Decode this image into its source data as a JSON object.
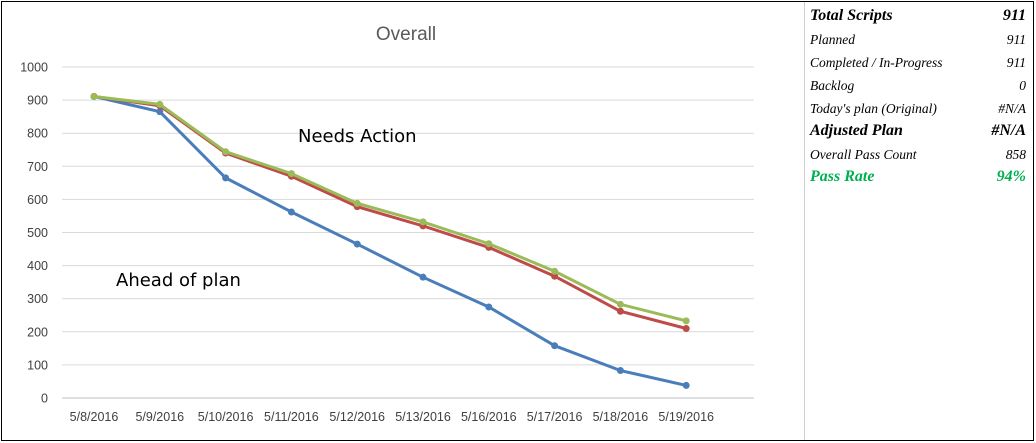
{
  "chart_data": {
    "type": "line",
    "title": "Overall",
    "categories": [
      "5/8/2016",
      "5/9/2016",
      "5/10/2016",
      "5/11/2016",
      "5/12/2016",
      "5/13/2016",
      "5/16/2016",
      "5/17/2016",
      "5/18/2016",
      "5/19/2016"
    ],
    "series": [
      {
        "color": "#4a7ebb",
        "values": [
          911,
          865,
          665,
          562,
          465,
          365,
          275,
          158,
          83,
          38
        ]
      },
      {
        "color": "#be4b48",
        "values": [
          911,
          883,
          740,
          670,
          578,
          520,
          455,
          368,
          262,
          210
        ]
      },
      {
        "color": "#9bbb59",
        "values": [
          911,
          887,
          744,
          678,
          588,
          532,
          466,
          383,
          283,
          233
        ]
      }
    ],
    "ylim": [
      0,
      1000
    ],
    "yticks": [
      0,
      100,
      200,
      300,
      400,
      500,
      600,
      700,
      800,
      900,
      1000
    ],
    "grid": true,
    "legend": "none",
    "annotations": [
      "Needs Action",
      "Ahead of plan"
    ]
  },
  "stats": [
    {
      "label": "Total Scripts",
      "value": "911",
      "style": "bold"
    },
    {
      "label": "Planned",
      "value": "911",
      "style": "normal"
    },
    {
      "label": "Completed / In-Progress",
      "value": "911",
      "style": "normal"
    },
    {
      "label": "Backlog",
      "value": "0",
      "style": "normal"
    },
    {
      "label": "Today's plan (Original)",
      "value": "#N/A",
      "style": "normal"
    },
    {
      "label": "Adjusted Plan",
      "value": "#N/A",
      "style": "bold"
    },
    {
      "label": "Overall Pass Count",
      "value": "858",
      "style": "normal"
    },
    {
      "label": "Pass Rate",
      "value": "94%",
      "style": "green"
    }
  ]
}
